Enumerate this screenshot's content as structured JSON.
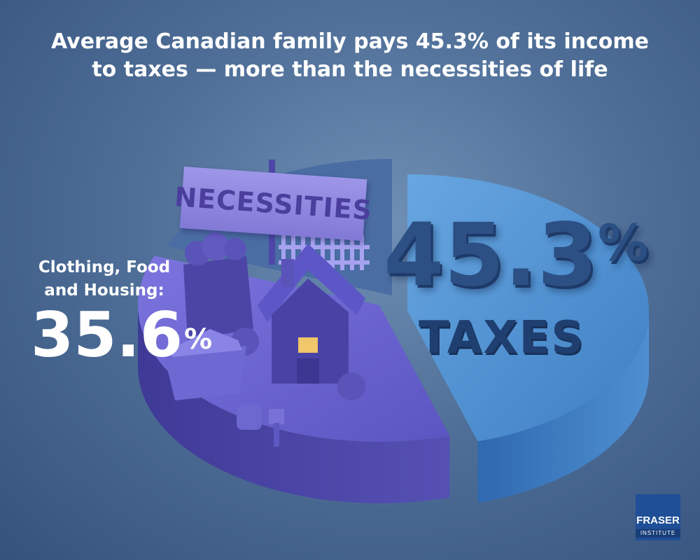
{
  "title_lines": [
    "Average Canadian family pays 45.3% of its income",
    "to taxes — more than the necessities of life"
  ],
  "chart_data": {
    "type": "pie",
    "title": "Average Canadian family pays 45.3% of its income to taxes — more than the necessities of life",
    "slices": [
      {
        "label": "TAXES",
        "value": 45.3,
        "color": "#4d8fd0"
      },
      {
        "label": "Clothing, Food and Housing",
        "value": 35.6,
        "color": "#5e58c0"
      },
      {
        "label": "",
        "value": 19.1,
        "color": "#4a6da3"
      }
    ]
  },
  "necessities": {
    "sign_text": "NECESSITIES",
    "label_line1": "Clothing, Food",
    "label_line2": "and Housing:",
    "value": "35.6",
    "pct": "%"
  },
  "taxes": {
    "value": "45.3",
    "pct": "%",
    "caption": "TAXES"
  },
  "logo": {
    "line1": "FRASER",
    "line2": "INSTITUTE"
  }
}
